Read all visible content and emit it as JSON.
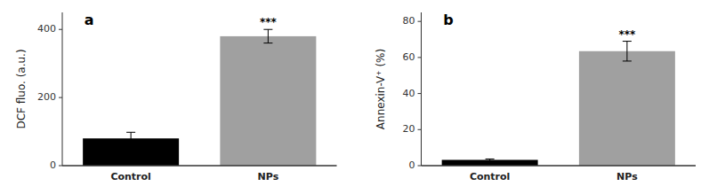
{
  "chart_data": [
    {
      "type": "bar",
      "title": "a",
      "categories": [
        "Control",
        "NPs"
      ],
      "values": [
        80,
        380
      ],
      "errors": [
        18,
        20
      ],
      "colors": [
        "#000000",
        "#a0a0a0"
      ],
      "ylabel": "DCF fluo. (a.u.)",
      "ylim": [
        0,
        450
      ],
      "yticks": [
        0,
        200,
        400
      ],
      "grid": false,
      "annotations": [
        {
          "text": "***",
          "category": "NPs"
        }
      ]
    },
    {
      "type": "bar",
      "title": "b",
      "categories": [
        "Control",
        "NPs"
      ],
      "values": [
        3.2,
        63.5
      ],
      "errors": [
        0.5,
        5.5
      ],
      "colors": [
        "#000000",
        "#a0a0a0"
      ],
      "ylabel": "Annexin-V⁺ (%)",
      "ylim": [
        0,
        85
      ],
      "yticks": [
        0,
        20,
        40,
        60,
        80
      ],
      "grid": false,
      "annotations": [
        {
          "text": "***",
          "category": "NPs"
        }
      ]
    }
  ]
}
